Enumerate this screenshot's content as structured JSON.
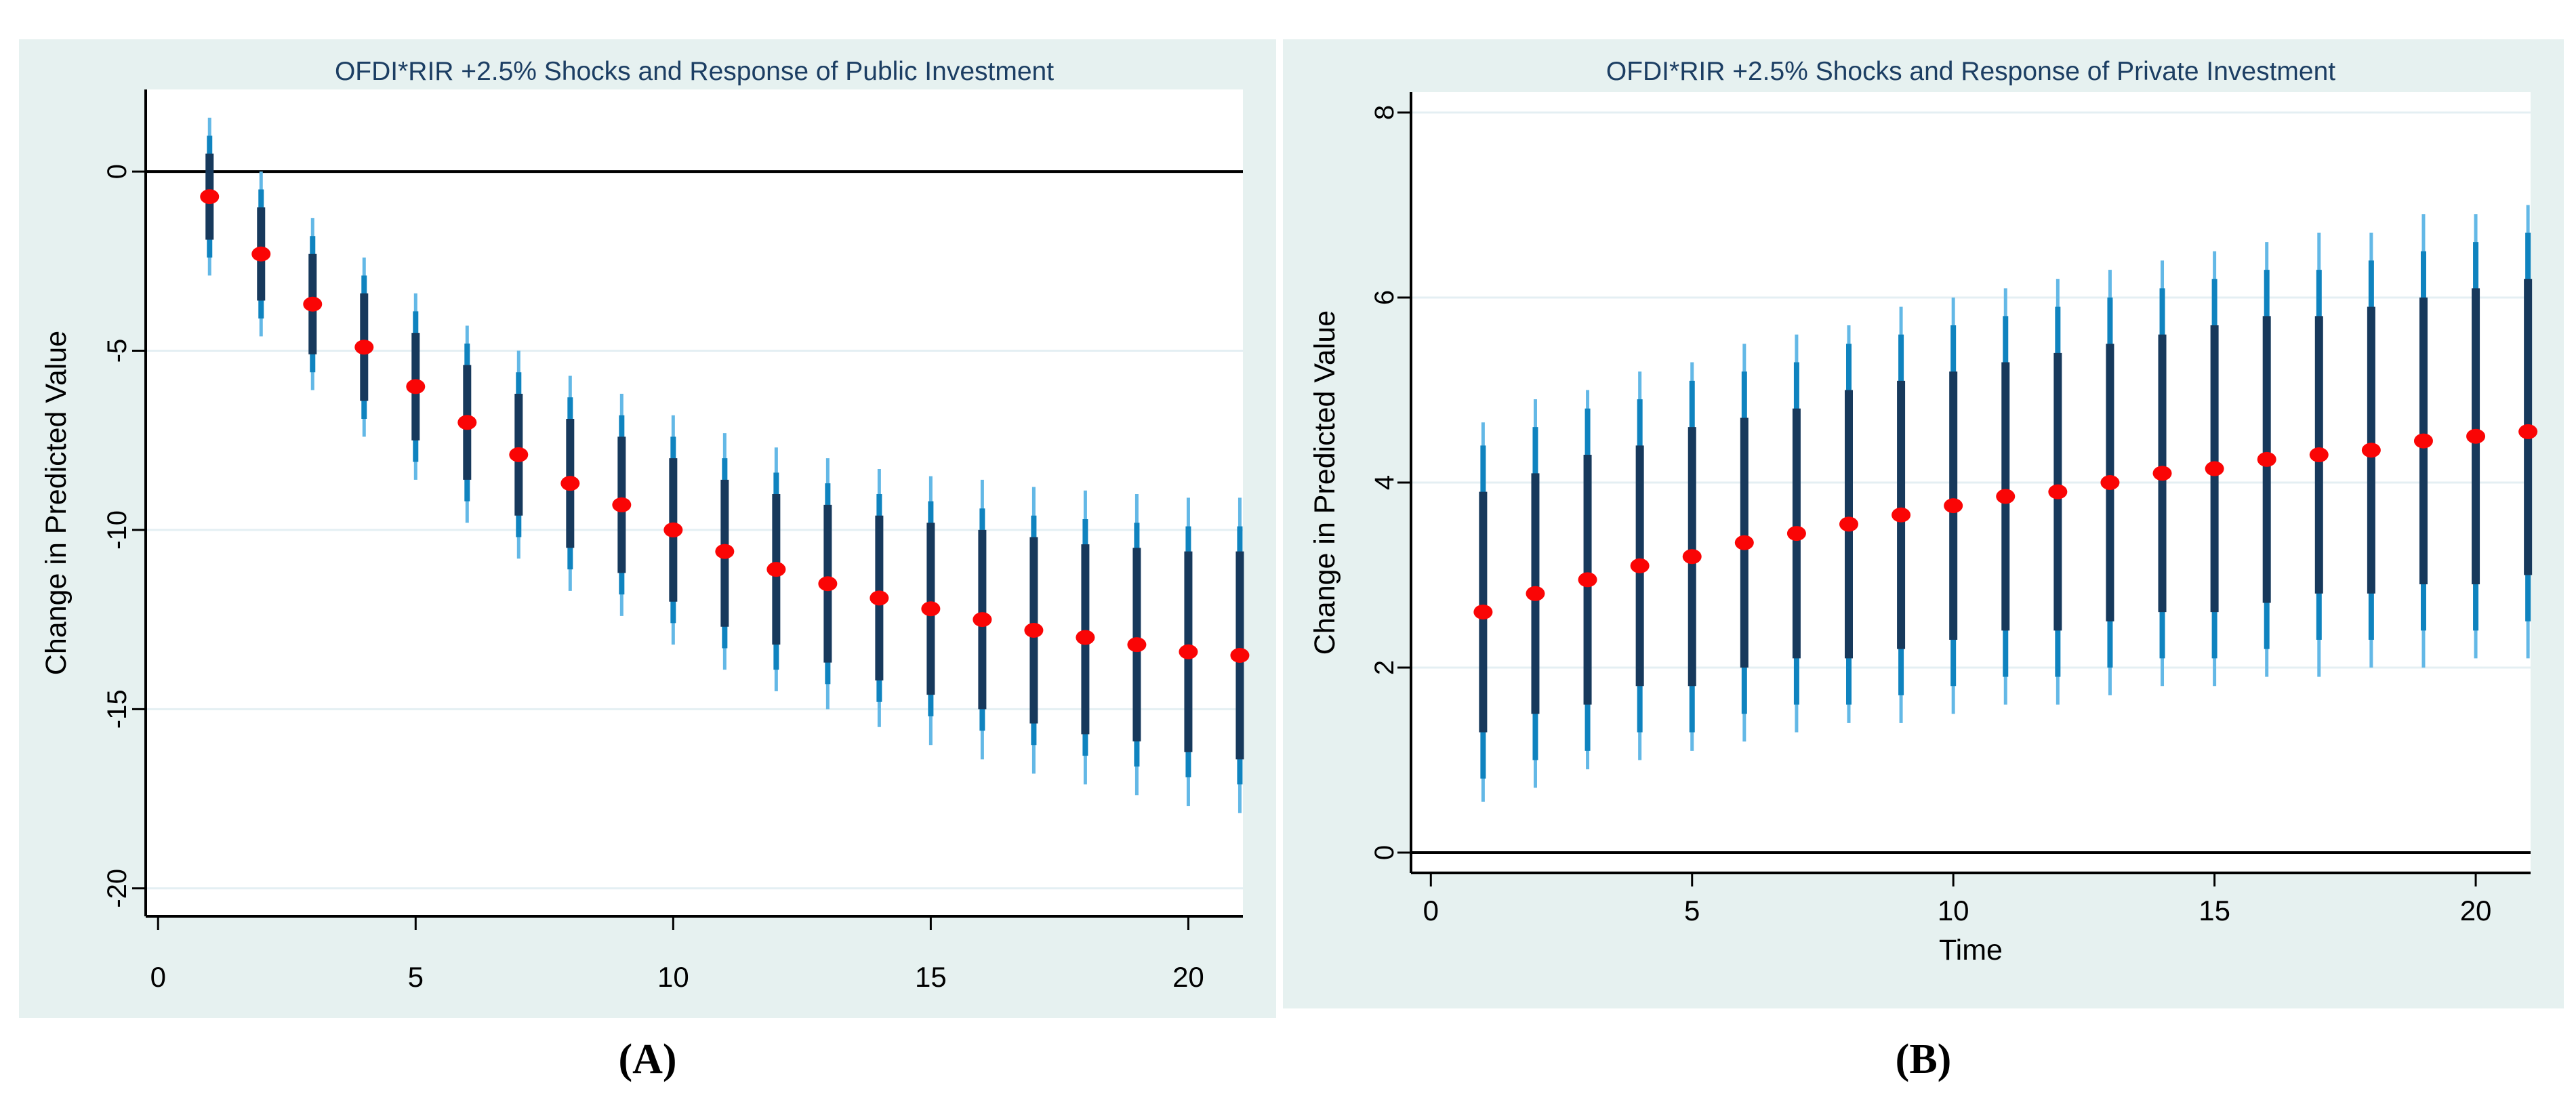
{
  "captions": {
    "a": "(A)",
    "b": "(B)"
  },
  "colors": {
    "page_bg": "#ffffff",
    "panel_bg": "#e6f1f0",
    "plot_bg": "#ffffff",
    "gridline": "#e4eff3",
    "axis": "#000000",
    "zero_line": "#000000",
    "title_text": "#1c3e63",
    "ci_outer": "#63b8e6",
    "ci_mid": "#0f83bf",
    "ci_inner": "#17395c",
    "dot": "#fa0505"
  },
  "chart_data": [
    {
      "id": "A",
      "type": "scatter",
      "title": "OFDI*RIR +2.5% Shocks and Response of Public Investment",
      "ylabel": "Change in Predicted Value",
      "xlabel": "",
      "caption": "(A)",
      "legend_position": "none",
      "grid": true,
      "xlim": [
        -0.24,
        21.06
      ],
      "ylim": [
        -20.78,
        2.29
      ],
      "xticks": [
        0,
        5,
        10,
        15,
        20
      ],
      "xtick_labels": [
        "0",
        "5",
        "10",
        "15",
        "20"
      ],
      "yticks": [
        0,
        -5,
        -10,
        -15,
        -20
      ],
      "ytick_labels": [
        "0",
        "-5",
        "-10",
        "-15",
        "-20"
      ],
      "zero_line": 0,
      "x": [
        1,
        2,
        3,
        4,
        5,
        6,
        7,
        8,
        9,
        10,
        11,
        12,
        13,
        14,
        15,
        16,
        17,
        18,
        19,
        20,
        21
      ],
      "values": [
        -0.7,
        -2.3,
        -3.7,
        -4.9,
        -6.0,
        -7.0,
        -7.9,
        -8.7,
        -9.3,
        -10.0,
        -10.6,
        -11.1,
        -11.5,
        -11.9,
        -12.2,
        -12.5,
        -12.8,
        -13.0,
        -13.2,
        -13.4,
        -13.5
      ],
      "ci_inner": [
        [
          -1.9,
          0.5
        ],
        [
          -3.6,
          -1.0
        ],
        [
          -5.1,
          -2.3
        ],
        [
          -6.4,
          -3.4
        ],
        [
          -7.5,
          -4.5
        ],
        [
          -8.6,
          -5.4
        ],
        [
          -9.6,
          -6.2
        ],
        [
          -10.5,
          -6.9
        ],
        [
          -11.2,
          -7.4
        ],
        [
          -12.0,
          -8.0
        ],
        [
          -12.7,
          -8.6
        ],
        [
          -13.2,
          -9.0
        ],
        [
          -13.7,
          -9.3
        ],
        [
          -14.2,
          -9.6
        ],
        [
          -14.6,
          -9.8
        ],
        [
          -15.0,
          -10.0
        ],
        [
          -15.4,
          -10.2
        ],
        [
          -15.7,
          -10.4
        ],
        [
          -15.9,
          -10.5
        ],
        [
          -16.2,
          -10.6
        ],
        [
          -16.4,
          -10.6
        ]
      ],
      "ci_mid": [
        [
          -2.4,
          1.0
        ],
        [
          -4.1,
          -0.5
        ],
        [
          -5.6,
          -1.8
        ],
        [
          -6.9,
          -2.9
        ],
        [
          -8.1,
          -3.9
        ],
        [
          -9.2,
          -4.8
        ],
        [
          -10.2,
          -5.6
        ],
        [
          -11.1,
          -6.3
        ],
        [
          -11.8,
          -6.8
        ],
        [
          -12.6,
          -7.4
        ],
        [
          -13.3,
          -8.0
        ],
        [
          -13.9,
          -8.4
        ],
        [
          -14.3,
          -8.7
        ],
        [
          -14.8,
          -9.0
        ],
        [
          -15.2,
          -9.2
        ],
        [
          -15.6,
          -9.4
        ],
        [
          -16.0,
          -9.6
        ],
        [
          -16.3,
          -9.7
        ],
        [
          -16.6,
          -9.8
        ],
        [
          -16.9,
          -9.9
        ],
        [
          -17.1,
          -9.9
        ]
      ],
      "ci_outer": [
        [
          -2.9,
          1.5
        ],
        [
          -4.6,
          0.0
        ],
        [
          -6.1,
          -1.3
        ],
        [
          -7.4,
          -2.4
        ],
        [
          -8.6,
          -3.4
        ],
        [
          -9.8,
          -4.3
        ],
        [
          -10.8,
          -5.0
        ],
        [
          -11.7,
          -5.7
        ],
        [
          -12.4,
          -6.2
        ],
        [
          -13.2,
          -6.8
        ],
        [
          -13.9,
          -7.3
        ],
        [
          -14.5,
          -7.7
        ],
        [
          -15.0,
          -8.0
        ],
        [
          -15.5,
          -8.3
        ],
        [
          -16.0,
          -8.5
        ],
        [
          -16.4,
          -8.6
        ],
        [
          -16.8,
          -8.8
        ],
        [
          -17.1,
          -8.9
        ],
        [
          -17.4,
          -9.0
        ],
        [
          -17.7,
          -9.1
        ],
        [
          -17.9,
          -9.1
        ]
      ]
    },
    {
      "id": "B",
      "type": "scatter",
      "title": "OFDI*RIR +2.5% Shocks and Response of Private Investment",
      "ylabel": "Change in Predicted Value",
      "xlabel": "Time",
      "caption": "(B)",
      "legend_position": "none",
      "grid": true,
      "xlim": [
        -0.38,
        21.05
      ],
      "ylim": [
        -0.22,
        8.22
      ],
      "xticks": [
        0,
        5,
        10,
        15,
        20
      ],
      "xtick_labels": [
        "0",
        "5",
        "10",
        "15",
        "20"
      ],
      "yticks": [
        0,
        2,
        4,
        6,
        8
      ],
      "ytick_labels": [
        "0",
        "2",
        "4",
        "6",
        "8"
      ],
      "zero_line": 0,
      "x": [
        1,
        2,
        3,
        4,
        5,
        6,
        7,
        8,
        9,
        10,
        11,
        12,
        13,
        14,
        15,
        16,
        17,
        18,
        19,
        20,
        21
      ],
      "values": [
        2.6,
        2.8,
        2.95,
        3.1,
        3.2,
        3.35,
        3.45,
        3.55,
        3.65,
        3.75,
        3.85,
        3.9,
        4.0,
        4.1,
        4.15,
        4.25,
        4.3,
        4.35,
        4.45,
        4.5,
        4.55
      ],
      "ci_inner": [
        [
          1.3,
          3.9
        ],
        [
          1.5,
          4.1
        ],
        [
          1.6,
          4.3
        ],
        [
          1.8,
          4.4
        ],
        [
          1.8,
          4.6
        ],
        [
          2.0,
          4.7
        ],
        [
          2.1,
          4.8
        ],
        [
          2.1,
          5.0
        ],
        [
          2.2,
          5.1
        ],
        [
          2.3,
          5.2
        ],
        [
          2.4,
          5.3
        ],
        [
          2.4,
          5.4
        ],
        [
          2.5,
          5.5
        ],
        [
          2.6,
          5.6
        ],
        [
          2.6,
          5.7
        ],
        [
          2.7,
          5.8
        ],
        [
          2.8,
          5.8
        ],
        [
          2.8,
          5.9
        ],
        [
          2.9,
          6.0
        ],
        [
          2.9,
          6.1
        ],
        [
          3.0,
          6.2
        ]
      ],
      "ci_mid": [
        [
          0.8,
          4.4
        ],
        [
          1.0,
          4.6
        ],
        [
          1.1,
          4.8
        ],
        [
          1.3,
          4.9
        ],
        [
          1.3,
          5.1
        ],
        [
          1.5,
          5.2
        ],
        [
          1.6,
          5.3
        ],
        [
          1.6,
          5.5
        ],
        [
          1.7,
          5.6
        ],
        [
          1.8,
          5.7
        ],
        [
          1.9,
          5.8
        ],
        [
          1.9,
          5.9
        ],
        [
          2.0,
          6.0
        ],
        [
          2.1,
          6.1
        ],
        [
          2.1,
          6.2
        ],
        [
          2.2,
          6.3
        ],
        [
          2.3,
          6.3
        ],
        [
          2.3,
          6.4
        ],
        [
          2.4,
          6.5
        ],
        [
          2.4,
          6.6
        ],
        [
          2.5,
          6.7
        ]
      ],
      "ci_outer": [
        [
          0.55,
          4.65
        ],
        [
          0.7,
          4.9
        ],
        [
          0.9,
          5.0
        ],
        [
          1.0,
          5.2
        ],
        [
          1.1,
          5.3
        ],
        [
          1.2,
          5.5
        ],
        [
          1.3,
          5.6
        ],
        [
          1.4,
          5.7
        ],
        [
          1.4,
          5.9
        ],
        [
          1.5,
          6.0
        ],
        [
          1.6,
          6.1
        ],
        [
          1.6,
          6.2
        ],
        [
          1.7,
          6.3
        ],
        [
          1.8,
          6.4
        ],
        [
          1.8,
          6.5
        ],
        [
          1.9,
          6.6
        ],
        [
          1.9,
          6.7
        ],
        [
          2.0,
          6.7
        ],
        [
          2.0,
          6.9
        ],
        [
          2.1,
          6.9
        ],
        [
          2.1,
          7.0
        ]
      ]
    }
  ]
}
